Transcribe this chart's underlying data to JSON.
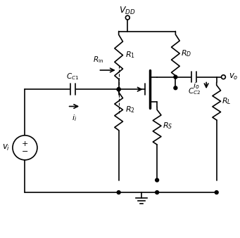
{
  "bg_color": "#ffffff",
  "line_color": "#000000",
  "figsize": [
    3.41,
    3.39
  ],
  "dpi": 100,
  "labels": {
    "VDD": "V_{DD}",
    "R1": "R_1",
    "R2": "R_2",
    "RD": "R_D",
    "RS": "R_S",
    "RL": "R_L",
    "CC1": "C_{C1}",
    "CC2": "C_{C2}",
    "Rin": "R_{\\mathrm{in}}",
    "vi": "v_i",
    "vo": "v_o",
    "ii": "i_i",
    "io": "i_o"
  }
}
